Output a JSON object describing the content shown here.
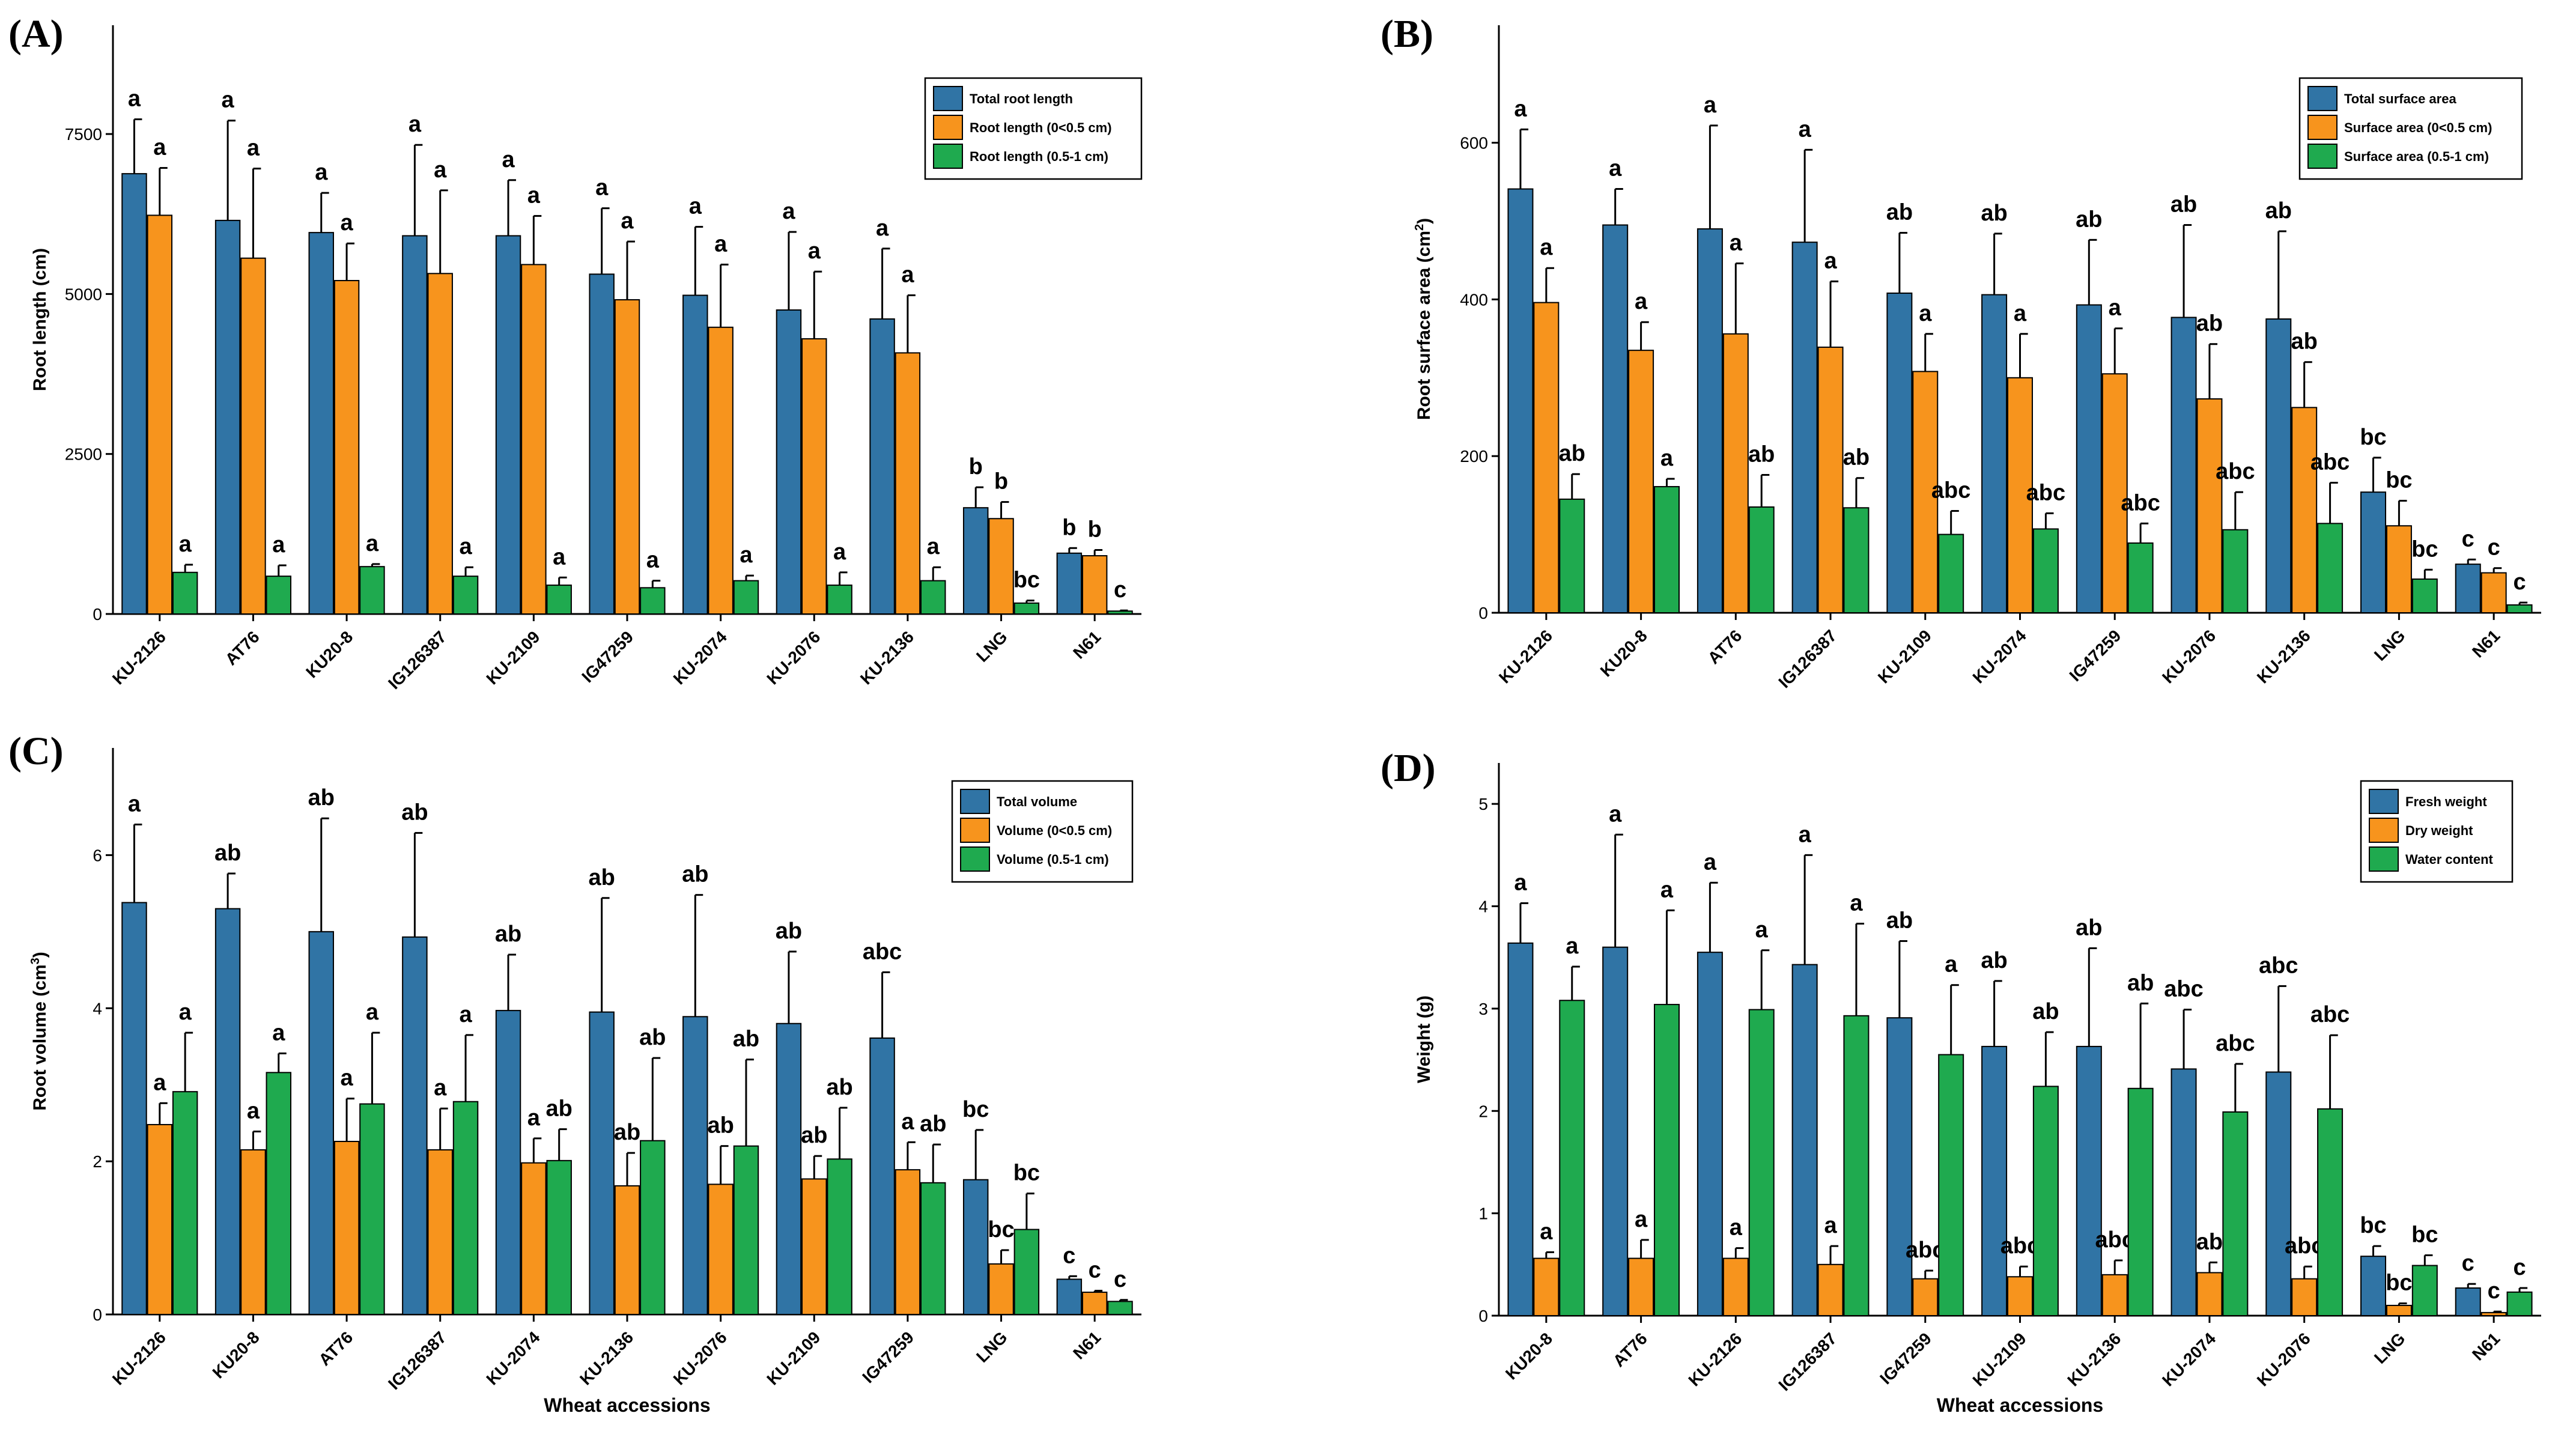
{
  "colors": {
    "blue": "#3074a5",
    "orange": "#f7941d",
    "green": "#1faa4f"
  },
  "chart_data": [
    {
      "panel": "(A)",
      "type": "bar",
      "ylabel": "Root length (cm)",
      "xlabel": "",
      "ylim": [
        0,
        9200
      ],
      "yticks": [
        0,
        2500,
        5000,
        7500
      ],
      "categories": [
        "KU-2126",
        "AT76",
        "KU20-8",
        "IG126387",
        "KU-2109",
        "IG47259",
        "KU-2074",
        "KU-2076",
        "KU-2136",
        "LNG",
        "N61"
      ],
      "series": [
        {
          "name": "Total root length",
          "color": "blue",
          "values": [
            6880,
            6150,
            5960,
            5910,
            5910,
            5310,
            4980,
            4750,
            4610,
            1660,
            950
          ],
          "errors": [
            850,
            1560,
            620,
            1420,
            870,
            1030,
            1070,
            1220,
            1100,
            320,
            80
          ],
          "letters": [
            "a",
            "a",
            "a",
            "a",
            "a",
            "a",
            "a",
            "a",
            "a",
            "b",
            "b"
          ]
        },
        {
          "name": "Root length (0<0.5 cm)",
          "color": "orange",
          "values": [
            6230,
            5560,
            5210,
            5320,
            5460,
            4910,
            4480,
            4300,
            4080,
            1490,
            910
          ],
          "errors": [
            740,
            1400,
            580,
            1300,
            760,
            910,
            980,
            1050,
            900,
            260,
            90
          ],
          "letters": [
            "a",
            "a",
            "a",
            "a",
            "a",
            "a",
            "a",
            "a",
            "a",
            "b",
            "b"
          ]
        },
        {
          "name": "Root length (0.5-1 cm)",
          "color": "green",
          "values": [
            650,
            590,
            740,
            590,
            450,
            410,
            520,
            450,
            520,
            170,
            45
          ],
          "errors": [
            120,
            170,
            40,
            140,
            120,
            110,
            80,
            200,
            210,
            40,
            10
          ],
          "letters": [
            "a",
            "a",
            "a",
            "a",
            "a",
            "a",
            "a",
            "a",
            "a",
            "bc",
            "c"
          ]
        }
      ]
    },
    {
      "panel": "(B)",
      "type": "bar",
      "ylabel_main": "Root surface area (cm",
      "ylabel_sup": "2",
      "ylabel_end": ")",
      "xlabel": "",
      "ylim": [
        0,
        750
      ],
      "yticks": [
        0,
        200,
        400,
        600
      ],
      "categories": [
        "KU-2126",
        "KU20-8",
        "AT76",
        "IG126387",
        "KU-2109",
        "KU-2074",
        "IG47259",
        "KU-2076",
        "KU-2136",
        "LNG",
        "N61"
      ],
      "series": [
        {
          "name": "Total surface area",
          "color": "blue",
          "values": [
            541,
            495,
            490,
            473,
            408,
            406,
            393,
            377,
            375,
            154,
            62
          ],
          "errors": [
            76,
            46,
            132,
            118,
            77,
            78,
            83,
            118,
            112,
            44,
            6
          ],
          "letters": [
            "a",
            "a",
            "a",
            "a",
            "ab",
            "ab",
            "ab",
            "ab",
            "ab",
            "bc",
            "c"
          ]
        },
        {
          "name": "Surface area (0<0.5 cm)",
          "color": "orange",
          "values": [
            396,
            335,
            356,
            339,
            308,
            300,
            305,
            273,
            262,
            111,
            51
          ],
          "errors": [
            44,
            36,
            90,
            84,
            48,
            56,
            58,
            70,
            58,
            32,
            6
          ],
          "letters": [
            "a",
            "a",
            "a",
            "a",
            "a",
            "a",
            "a",
            "ab",
            "ab",
            "bc",
            "c"
          ]
        },
        {
          "name": "Surface area (0.5-1 cm)",
          "color": "green",
          "values": [
            145,
            161,
            135,
            134,
            100,
            107,
            89,
            106,
            114,
            43,
            10
          ],
          "errors": [
            32,
            10,
            41,
            38,
            30,
            20,
            25,
            48,
            52,
            12,
            3
          ],
          "letters": [
            "ab",
            "a",
            "ab",
            "ab",
            "abc",
            "abc",
            "abc",
            "abc",
            "abc",
            "bc",
            "c"
          ]
        }
      ]
    },
    {
      "panel": "(C)",
      "type": "bar",
      "ylabel_main": "Root volume (cm",
      "ylabel_sup": "3",
      "ylabel_end": ")",
      "xlabel": "Wheat accessions",
      "ylim": [
        0,
        7.4
      ],
      "yticks": [
        0,
        2,
        4,
        6
      ],
      "categories": [
        "KU-2126",
        "KU20-8",
        "AT76",
        "IG126387",
        "KU-2074",
        "KU-2136",
        "KU-2076",
        "KU-2109",
        "IG47259",
        "LNG",
        "N61"
      ],
      "series": [
        {
          "name": "Total volume",
          "color": "blue",
          "values": [
            5.38,
            5.3,
            5.0,
            4.93,
            3.97,
            3.95,
            3.89,
            3.8,
            3.61,
            1.76,
            0.46
          ],
          "errors": [
            1.02,
            0.46,
            1.48,
            1.36,
            0.73,
            1.49,
            1.59,
            0.94,
            0.86,
            0.65,
            0.04
          ],
          "letters": [
            "a",
            "ab",
            "ab",
            "ab",
            "ab",
            "ab",
            "ab",
            "ab",
            "abc",
            "bc",
            "c"
          ]
        },
        {
          "name": "Volume (0<0.5 cm)",
          "color": "orange",
          "values": [
            2.48,
            2.15,
            2.26,
            2.15,
            1.98,
            1.68,
            1.7,
            1.77,
            1.89,
            0.66,
            0.29
          ],
          "errors": [
            0.28,
            0.24,
            0.56,
            0.54,
            0.32,
            0.43,
            0.5,
            0.3,
            0.36,
            0.18,
            0.02
          ],
          "letters": [
            "a",
            "a",
            "a",
            "a",
            "a",
            "ab",
            "ab",
            "ab",
            "a",
            "bc",
            "c"
          ]
        },
        {
          "name": "Volume (0.5-1 cm)",
          "color": "green",
          "values": [
            2.91,
            3.16,
            2.75,
            2.78,
            2.01,
            2.27,
            2.2,
            2.03,
            1.72,
            1.11,
            0.17
          ],
          "errors": [
            0.77,
            0.25,
            0.93,
            0.87,
            0.41,
            1.08,
            1.13,
            0.67,
            0.5,
            0.47,
            0.02
          ],
          "letters": [
            "a",
            "a",
            "a",
            "a",
            "ab",
            "ab",
            "ab",
            "ab",
            "ab",
            "bc",
            "c"
          ]
        }
      ]
    },
    {
      "panel": "(D)",
      "type": "bar",
      "ylabel": "Weight (g)",
      "xlabel": "Wheat accessions",
      "ylim": [
        0,
        5.4
      ],
      "yticks": [
        0,
        1,
        2,
        3,
        4,
        5
      ],
      "categories": [
        "KU20-8",
        "AT76",
        "KU-2126",
        "IG126387",
        "IG47259",
        "KU-2109",
        "KU-2136",
        "KU-2074",
        "KU-2076",
        "LNG",
        "N61"
      ],
      "series": [
        {
          "name": "Fresh weight",
          "color": "blue",
          "values": [
            3.64,
            3.6,
            3.55,
            3.43,
            2.91,
            2.63,
            2.63,
            2.41,
            2.38,
            0.58,
            0.27
          ],
          "errors": [
            0.39,
            1.1,
            0.68,
            1.07,
            0.75,
            0.64,
            0.96,
            0.58,
            0.84,
            0.1,
            0.04
          ],
          "letters": [
            "a",
            "a",
            "a",
            "a",
            "ab",
            "ab",
            "ab",
            "abc",
            "abc",
            "bc",
            "c"
          ]
        },
        {
          "name": "Dry weight",
          "color": "orange",
          "values": [
            0.56,
            0.56,
            0.56,
            0.5,
            0.36,
            0.38,
            0.4,
            0.42,
            0.36,
            0.1,
            0.03
          ],
          "errors": [
            0.06,
            0.18,
            0.1,
            0.18,
            0.08,
            0.1,
            0.14,
            0.1,
            0.12,
            0.02,
            0.01
          ],
          "letters": [
            "a",
            "a",
            "a",
            "a",
            "abc",
            "abc",
            "abc",
            "ab",
            "abc",
            "bc",
            "c"
          ]
        },
        {
          "name": "Water content",
          "color": "green",
          "values": [
            3.08,
            3.04,
            2.99,
            2.93,
            2.55,
            2.24,
            2.22,
            1.99,
            2.02,
            0.49,
            0.23
          ],
          "errors": [
            0.33,
            0.92,
            0.58,
            0.9,
            0.68,
            0.53,
            0.83,
            0.47,
            0.72,
            0.1,
            0.04
          ],
          "letters": [
            "a",
            "a",
            "a",
            "a",
            "a",
            "ab",
            "ab",
            "abc",
            "abc",
            "bc",
            "c"
          ]
        }
      ]
    }
  ]
}
